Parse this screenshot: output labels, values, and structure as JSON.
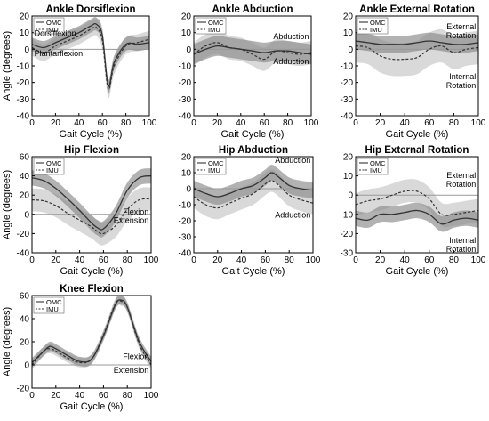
{
  "figure": {
    "legend_labels": [
      "OMC",
      "IMU"
    ],
    "colors": {
      "omc_line": "#333333",
      "imu_line": "#333333",
      "omc_band": "#888888",
      "imu_band": "#d0d0d0",
      "zero_line": "#999999",
      "axes": "#000000"
    }
  },
  "chart_data": [
    {
      "type": "line",
      "title": "Ankle Dorsiflexion",
      "xlabel": "Gait Cycle (%)",
      "ylabel": "Angle (degrees)",
      "xlim": [
        0,
        100
      ],
      "ylim": [
        -40,
        20
      ],
      "xticks": [
        0,
        20,
        40,
        60,
        80,
        100
      ],
      "yticks": [
        -40,
        -30,
        -20,
        -10,
        0,
        10,
        20
      ],
      "legend_position": "top-left",
      "annotations": [
        "Dorsiflexion",
        "Plantarflexion"
      ],
      "x": [
        0,
        10,
        20,
        30,
        40,
        50,
        55,
        60,
        65,
        70,
        80,
        90,
        100
      ],
      "series": [
        {
          "name": "OMC",
          "values": [
            3,
            1,
            4,
            7,
            10,
            14,
            15,
            8,
            -22,
            -8,
            3,
            3,
            4
          ],
          "band": 4
        },
        {
          "name": "IMU",
          "values": [
            1,
            -2,
            2,
            5,
            8,
            12,
            13,
            5,
            -24,
            -10,
            2,
            4,
            6
          ],
          "band": 5
        }
      ]
    },
    {
      "type": "line",
      "title": "Ankle Abduction",
      "xlabel": "Gait Cycle (%)",
      "ylabel": "",
      "xlim": [
        0,
        100
      ],
      "ylim": [
        -40,
        20
      ],
      "xticks": [
        0,
        20,
        40,
        60,
        80,
        100
      ],
      "yticks": [
        -40,
        -30,
        -20,
        -10,
        0,
        10,
        20
      ],
      "legend_position": "top-left",
      "annotations": [
        "Abduction",
        "Adduction"
      ],
      "x": [
        0,
        10,
        20,
        30,
        40,
        50,
        60,
        70,
        80,
        90,
        100
      ],
      "series": [
        {
          "name": "OMC",
          "values": [
            -3,
            0,
            2,
            1,
            0,
            -1,
            -2,
            -1,
            -1,
            -2,
            -3
          ],
          "band": 6
        },
        {
          "name": "IMU",
          "values": [
            -3,
            2,
            4,
            1,
            0,
            -3,
            -6,
            -1,
            -2,
            -3,
            -2
          ],
          "band": 7
        }
      ]
    },
    {
      "type": "line",
      "title": "Ankle External Rotation",
      "xlabel": "Gait Cycle (%)",
      "ylabel": "",
      "xlim": [
        0,
        100
      ],
      "ylim": [
        -40,
        20
      ],
      "xticks": [
        0,
        20,
        40,
        60,
        80,
        100
      ],
      "yticks": [
        -40,
        -30,
        -20,
        -10,
        0,
        10,
        20
      ],
      "legend_position": "top-left",
      "annotations": [
        "External Rotation",
        "Internal Rotation"
      ],
      "x": [
        0,
        10,
        20,
        30,
        40,
        50,
        60,
        70,
        80,
        90,
        100
      ],
      "series": [
        {
          "name": "OMC",
          "values": [
            5,
            4,
            3,
            3,
            3,
            4,
            5,
            4,
            3,
            3,
            4
          ],
          "band": 5
        },
        {
          "name": "IMU",
          "values": [
            2,
            1,
            -4,
            -6,
            -6,
            -5,
            0,
            2,
            -2,
            0,
            1
          ],
          "band": 10
        }
      ]
    },
    {
      "type": "line",
      "title": "Hip Flexion",
      "xlabel": "Gait Cycle (%)",
      "ylabel": "Angle (degrees)",
      "xlim": [
        0,
        100
      ],
      "ylim": [
        -40,
        60
      ],
      "xticks": [
        0,
        20,
        40,
        60,
        80,
        100
      ],
      "yticks": [
        -40,
        -20,
        0,
        20,
        40,
        60
      ],
      "legend_position": "top-left",
      "annotations": [
        "Flexion",
        "Extension"
      ],
      "x": [
        0,
        10,
        20,
        30,
        40,
        50,
        55,
        60,
        70,
        80,
        90,
        100
      ],
      "series": [
        {
          "name": "OMC",
          "values": [
            38,
            35,
            27,
            16,
            4,
            -9,
            -14,
            -15,
            0,
            25,
            38,
            40
          ],
          "band": 8
        },
        {
          "name": "IMU",
          "values": [
            15,
            14,
            9,
            1,
            -6,
            -13,
            -18,
            -20,
            -12,
            5,
            15,
            16
          ],
          "band": 12
        }
      ]
    },
    {
      "type": "line",
      "title": "Hip Abduction",
      "xlabel": "Gait Cycle (%)",
      "ylabel": "",
      "xlim": [
        0,
        100
      ],
      "ylim": [
        -40,
        20
      ],
      "xticks": [
        0,
        20,
        40,
        60,
        80,
        100
      ],
      "yticks": [
        -40,
        -30,
        -20,
        -10,
        0,
        10,
        20
      ],
      "legend_position": "top-left",
      "annotations": [
        "Abduction",
        "Adduction"
      ],
      "x": [
        0,
        10,
        20,
        30,
        40,
        50,
        60,
        65,
        70,
        80,
        90,
        100
      ],
      "series": [
        {
          "name": "OMC",
          "values": [
            0,
            -3,
            -5,
            -3,
            0,
            2,
            7,
            10,
            8,
            2,
            0,
            -1
          ],
          "band": 5
        },
        {
          "name": "IMU",
          "values": [
            -5,
            -10,
            -12,
            -9,
            -6,
            -3,
            3,
            5,
            3,
            -4,
            -7,
            -9
          ],
          "band": 7
        }
      ]
    },
    {
      "type": "line",
      "title": "Hip External Rotation",
      "xlabel": "Gait Cycle (%)",
      "ylabel": "",
      "xlim": [
        0,
        100
      ],
      "ylim": [
        -30,
        20
      ],
      "xticks": [
        0,
        20,
        40,
        60,
        80,
        100
      ],
      "yticks": [
        -30,
        -20,
        -10,
        0,
        10,
        20
      ],
      "legend_position": "top-left",
      "annotations": [
        "External Rotation",
        "Internal Rotation"
      ],
      "x": [
        0,
        10,
        20,
        30,
        40,
        50,
        60,
        70,
        80,
        90,
        100
      ],
      "series": [
        {
          "name": "OMC",
          "values": [
            -12,
            -13,
            -10,
            -10,
            -9,
            -8,
            -10,
            -15,
            -13,
            -12,
            -13
          ],
          "band": 4
        },
        {
          "name": "IMU",
          "values": [
            -5,
            -3,
            -2,
            0,
            2,
            2,
            -2,
            -10,
            -10,
            -9,
            -8
          ],
          "band": 6
        }
      ]
    },
    {
      "type": "line",
      "title": "Knee Flexion",
      "xlabel": "Gait Cycle (%)",
      "ylabel": "Angle (degrees)",
      "xlim": [
        0,
        100
      ],
      "ylim": [
        -20,
        60
      ],
      "xticks": [
        0,
        20,
        40,
        60,
        80,
        100
      ],
      "yticks": [
        -20,
        0,
        20,
        40,
        60
      ],
      "legend_position": "top-left",
      "annotations": [
        "Flexion",
        "Extension"
      ],
      "x": [
        0,
        10,
        15,
        20,
        30,
        40,
        50,
        60,
        70,
        75,
        80,
        90,
        100
      ],
      "series": [
        {
          "name": "OMC",
          "values": [
            2,
            12,
            16,
            14,
            8,
            3,
            5,
            25,
            52,
            56,
            50,
            20,
            3
          ],
          "band": 4
        },
        {
          "name": "IMU",
          "values": [
            0,
            12,
            14,
            12,
            6,
            2,
            5,
            26,
            53,
            55,
            50,
            18,
            0
          ],
          "band": 4
        }
      ]
    }
  ]
}
